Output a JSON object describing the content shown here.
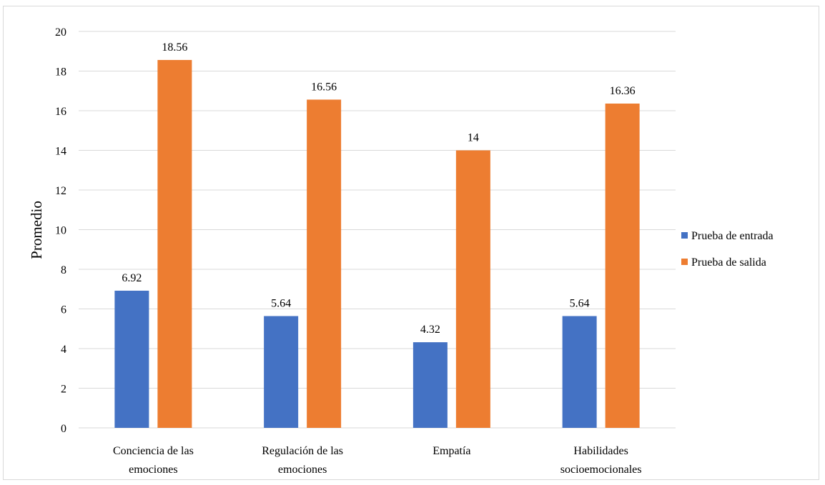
{
  "chart_data": {
    "type": "bar",
    "categories": [
      [
        "Conciencia de las",
        "emociones"
      ],
      [
        "Regulación de las",
        "emociones"
      ],
      [
        "Empatía"
      ],
      [
        "Habilidades",
        "socioemocionales"
      ]
    ],
    "series": [
      {
        "name": "Prueba de entrada",
        "values": [
          6.92,
          5.64,
          4.32,
          5.64
        ],
        "color": "#4472c4",
        "value_labels": [
          "6.92",
          "5.64",
          "4.32",
          "5.64"
        ]
      },
      {
        "name": "Prueba de salida",
        "values": [
          18.56,
          16.56,
          14,
          16.36
        ],
        "color": "#ed7d31",
        "value_labels": [
          "18.56",
          "16.56",
          "14",
          "16.36"
        ]
      }
    ],
    "title": "",
    "xlabel": "",
    "ylabel": "Promedio",
    "ylim": [
      0,
      20
    ],
    "yticks": [
      0,
      2,
      4,
      6,
      8,
      10,
      12,
      14,
      16,
      18,
      20
    ],
    "grid": true,
    "legend_position": "right"
  }
}
